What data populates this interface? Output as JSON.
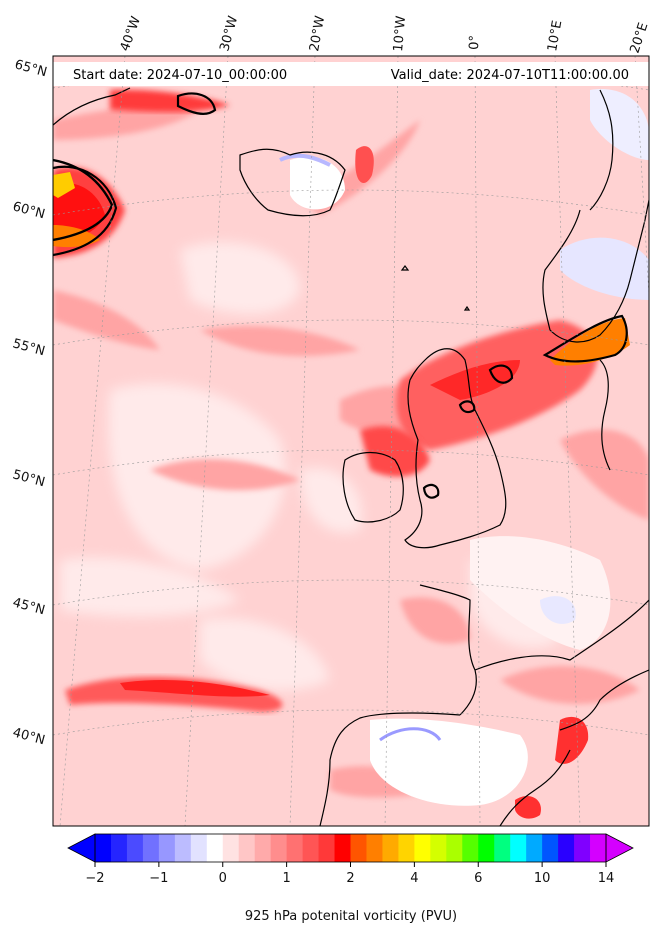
{
  "header": {
    "start_date": "Start date: 2024-07-10_00:00:00",
    "valid_date": "Valid_date: 2024-07-10T11:00:00.00"
  },
  "map": {
    "lon_labels": [
      "40°W",
      "30°W",
      "20°W",
      "10°W",
      "0°",
      "10°E",
      "20°E"
    ],
    "lat_labels": [
      "65°N",
      "60°N",
      "55°N",
      "50°N",
      "45°N",
      "40°N"
    ],
    "field_colors": {
      "background": "#ffd2d2",
      "light": "#ffe6e6",
      "mid": "#ffaaaa",
      "strong": "#ff6a6a",
      "intense": "#ff1e1e",
      "orange": "#ff7f00",
      "negative": "#e9e9ff",
      "white": "#ffffff"
    }
  },
  "colorbar": {
    "ticks": [
      "−2",
      "−1",
      "0",
      "1",
      "2",
      "4",
      "6",
      "10",
      "14"
    ],
    "label": "925 hPa potenital vorticity (PVU)",
    "colors": [
      "#0000ff",
      "#2525ff",
      "#4b4bff",
      "#7171ff",
      "#9797ff",
      "#bcbcff",
      "#e2e2ff",
      "#ffffff",
      "#ffe2e2",
      "#ffc6c6",
      "#ffaaaa",
      "#ff8d8d",
      "#ff7171",
      "#ff5555",
      "#ff3939",
      "#ff0000",
      "#ff5500",
      "#ff7f00",
      "#ffaa00",
      "#ffd400",
      "#ffff00",
      "#d4ff00",
      "#aaff00",
      "#55ff00",
      "#00ff00",
      "#00ff80",
      "#00ffff",
      "#00aaff",
      "#0055ff",
      "#2a00ff",
      "#8000ff",
      "#d400ff"
    ]
  }
}
